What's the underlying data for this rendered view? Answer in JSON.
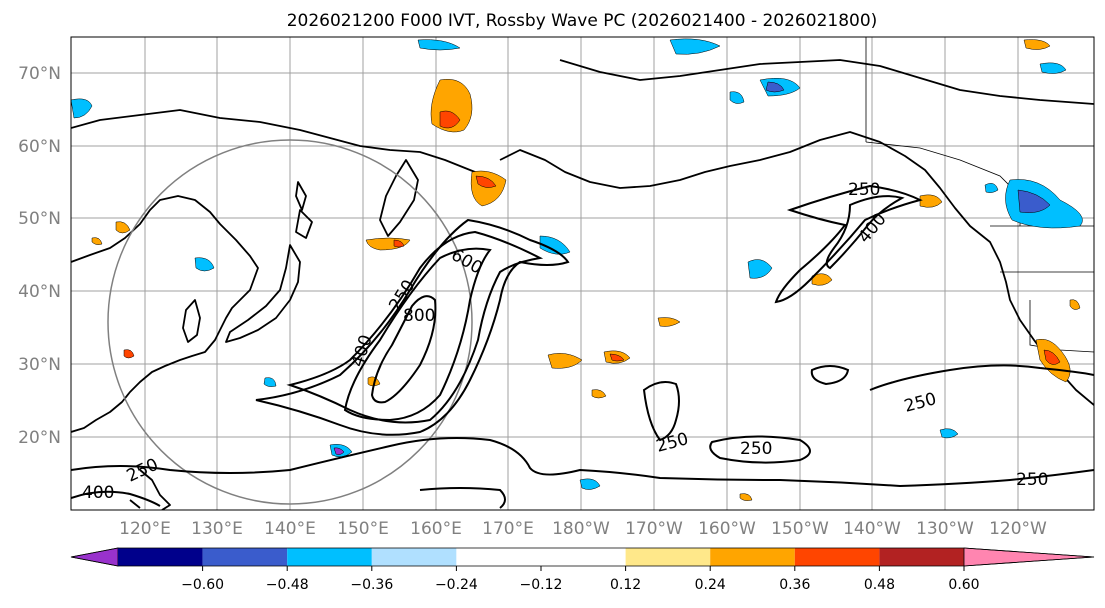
{
  "title": "2026021200 F000 IVT, Rossby Wave PC (2026021400 - 2026021800)",
  "lat_labels": [
    "70°N",
    "60°N",
    "50°N",
    "40°N",
    "30°N",
    "20°N"
  ],
  "lon_labels": [
    "120°E",
    "130°E",
    "140°E",
    "150°E",
    "160°E",
    "170°E",
    "180°W",
    "170°W",
    "160°W",
    "150°W",
    "140°W",
    "130°W",
    "120°W"
  ],
  "colorbar": {
    "ticks": [
      "−0.60",
      "−0.48",
      "−0.36",
      "−0.24",
      "−0.12",
      "0.12",
      "0.24",
      "0.36",
      "0.48",
      "0.60"
    ],
    "colors": {
      "under": "#9932cc",
      "c1": "#00008b",
      "c2": "#3a5ccc",
      "c3": "#00bfff",
      "c4": "#b0e0ff",
      "c5": "#ffffff",
      "c6": "#ffe88a",
      "c7": "#ffa500",
      "c8": "#ff4500",
      "c9": "#b22222",
      "over": "#ff85b0"
    }
  },
  "ivt_contour_labels": [
    "250",
    "400",
    "600",
    "800",
    "250",
    "400",
    "250",
    "250",
    "250",
    "250",
    "250",
    "400"
  ]
}
